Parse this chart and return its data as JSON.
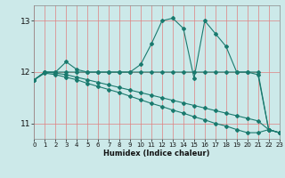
{
  "xlabel": "Humidex (Indice chaleur)",
  "bg_color": "#cce9e9",
  "line_color": "#1a7a6e",
  "grid_color": "#b0d8d8",
  "xlim": [
    0,
    23
  ],
  "ylim": [
    10.7,
    13.3
  ],
  "yticks": [
    11,
    12,
    13
  ],
  "xticks": [
    0,
    1,
    2,
    3,
    4,
    5,
    6,
    7,
    8,
    9,
    10,
    11,
    12,
    13,
    14,
    15,
    16,
    17,
    18,
    19,
    20,
    21,
    22,
    23
  ],
  "series": [
    {
      "x": [
        0,
        1,
        2,
        3,
        4,
        5,
        6,
        7,
        8,
        9,
        10,
        11,
        12,
        13,
        14,
        15,
        16,
        17,
        18,
        19,
        20,
        21,
        22,
        23
      ],
      "y": [
        11.85,
        12.0,
        12.0,
        12.2,
        12.05,
        12.0,
        12.0,
        12.0,
        12.0,
        12.0,
        12.15,
        12.55,
        13.0,
        13.05,
        12.85,
        11.88,
        13.0,
        12.75,
        12.5,
        12.0,
        12.0,
        12.0,
        10.88,
        10.82
      ],
      "marker": "D",
      "markersize": 2.0,
      "linewidth": 0.8
    },
    {
      "x": [
        0,
        1,
        2,
        3,
        4,
        5,
        6,
        7,
        8,
        9,
        10,
        11,
        12,
        13,
        14,
        15,
        16,
        17,
        18,
        19,
        20,
        21,
        22,
        23
      ],
      "y": [
        11.85,
        12.0,
        12.0,
        12.0,
        12.0,
        12.0,
        12.0,
        12.0,
        12.0,
        12.0,
        12.0,
        12.0,
        12.0,
        12.0,
        12.0,
        12.0,
        12.0,
        12.0,
        12.0,
        12.0,
        12.0,
        11.95,
        10.88,
        10.82
      ],
      "marker": "D",
      "markersize": 2.0,
      "linewidth": 0.8
    },
    {
      "x": [
        0,
        1,
        2,
        3,
        4,
        5,
        6,
        7,
        8,
        9,
        10,
        11,
        12,
        13,
        14,
        15,
        16,
        17,
        18,
        19,
        20,
        21,
        22,
        23
      ],
      "y": [
        11.85,
        12.0,
        11.98,
        11.95,
        11.9,
        11.85,
        11.8,
        11.75,
        11.7,
        11.65,
        11.6,
        11.55,
        11.5,
        11.45,
        11.4,
        11.35,
        11.3,
        11.25,
        11.2,
        11.15,
        11.1,
        11.05,
        10.88,
        10.82
      ],
      "marker": "D",
      "markersize": 2.0,
      "linewidth": 0.8
    },
    {
      "x": [
        0,
        1,
        2,
        3,
        4,
        5,
        6,
        7,
        8,
        9,
        10,
        11,
        12,
        13,
        14,
        15,
        16,
        17,
        18,
        19,
        20,
        21,
        22,
        23
      ],
      "y": [
        11.85,
        11.98,
        11.95,
        11.9,
        11.85,
        11.78,
        11.72,
        11.66,
        11.6,
        11.53,
        11.46,
        11.39,
        11.33,
        11.26,
        11.2,
        11.13,
        11.07,
        11.0,
        10.95,
        10.88,
        10.82,
        10.82,
        10.88,
        10.82
      ],
      "marker": "D",
      "markersize": 2.0,
      "linewidth": 0.8
    }
  ]
}
